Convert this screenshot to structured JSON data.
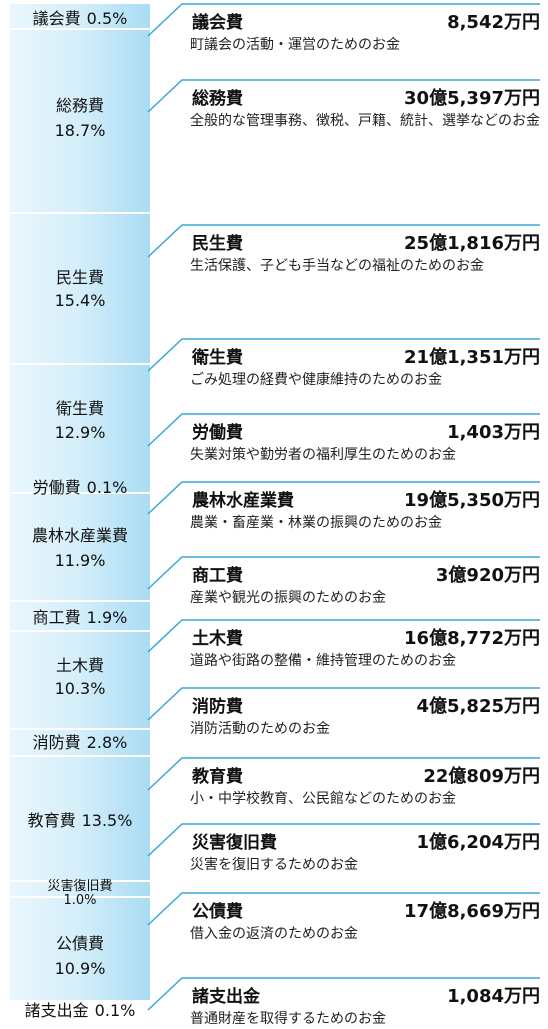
{
  "items": [
    {
      "name": "議会費",
      "percent": "0.5%",
      "amount": "8,542万円",
      "description": "町議会の活動・運営のためのお金"
    },
    {
      "name": "総務費",
      "percent": "18.7%",
      "amount": "30億5,397万円",
      "description": "全般的な管理事務、徴税、戸籍、統計、選挙などのお金"
    },
    {
      "name": "民生費",
      "percent": "15.4%",
      "amount": "25億1,816万円",
      "description": "生活保護、子ども手当などの福祉のためのお金"
    },
    {
      "name": "衛生費",
      "percent": "12.9%",
      "amount": "21億1,351万円",
      "description": "ごみ処理の経費や健康維持のためのお金"
    },
    {
      "name": "労働費",
      "percent": "0.1%",
      "amount": "1,403万円",
      "description": "失業対策や勤労者の福利厚生のためのお金"
    },
    {
      "name": "農林水産業費",
      "percent": "11.9%",
      "amount": "19億5,350万円",
      "description": "農業・畜産業・林業の振興のためのお金"
    },
    {
      "name": "商工費",
      "percent": "1.9%",
      "amount": "3億920万円",
      "description": "産業や観光の振興のためのお金"
    },
    {
      "name": "土木費",
      "percent": "10.3%",
      "amount": "16億8,772万円",
      "description": "道路や街路の整備・維持管理のためのお金"
    },
    {
      "name": "消防費",
      "percent": "2.8%",
      "amount": "4億5,825万円",
      "description": "消防活動のためのお金"
    },
    {
      "name": "教育費",
      "percent": "13.5%",
      "amount": "22億809万円",
      "description": "小・中学校教育、公民館などのためのお金"
    },
    {
      "name": "災害復旧費",
      "percent": "1.0%",
      "amount": "1億6,204万円",
      "description": "災害を復旧するためのお金"
    },
    {
      "name": "公債費",
      "percent": "10.9%",
      "amount": "17億8,669万円",
      "description": "借入金の返済のためのお金"
    },
    {
      "name": "諸支出金",
      "percent": "0.1%",
      "amount": "1,084万円",
      "description": "普通財産を取得するためのお金"
    }
  ]
}
